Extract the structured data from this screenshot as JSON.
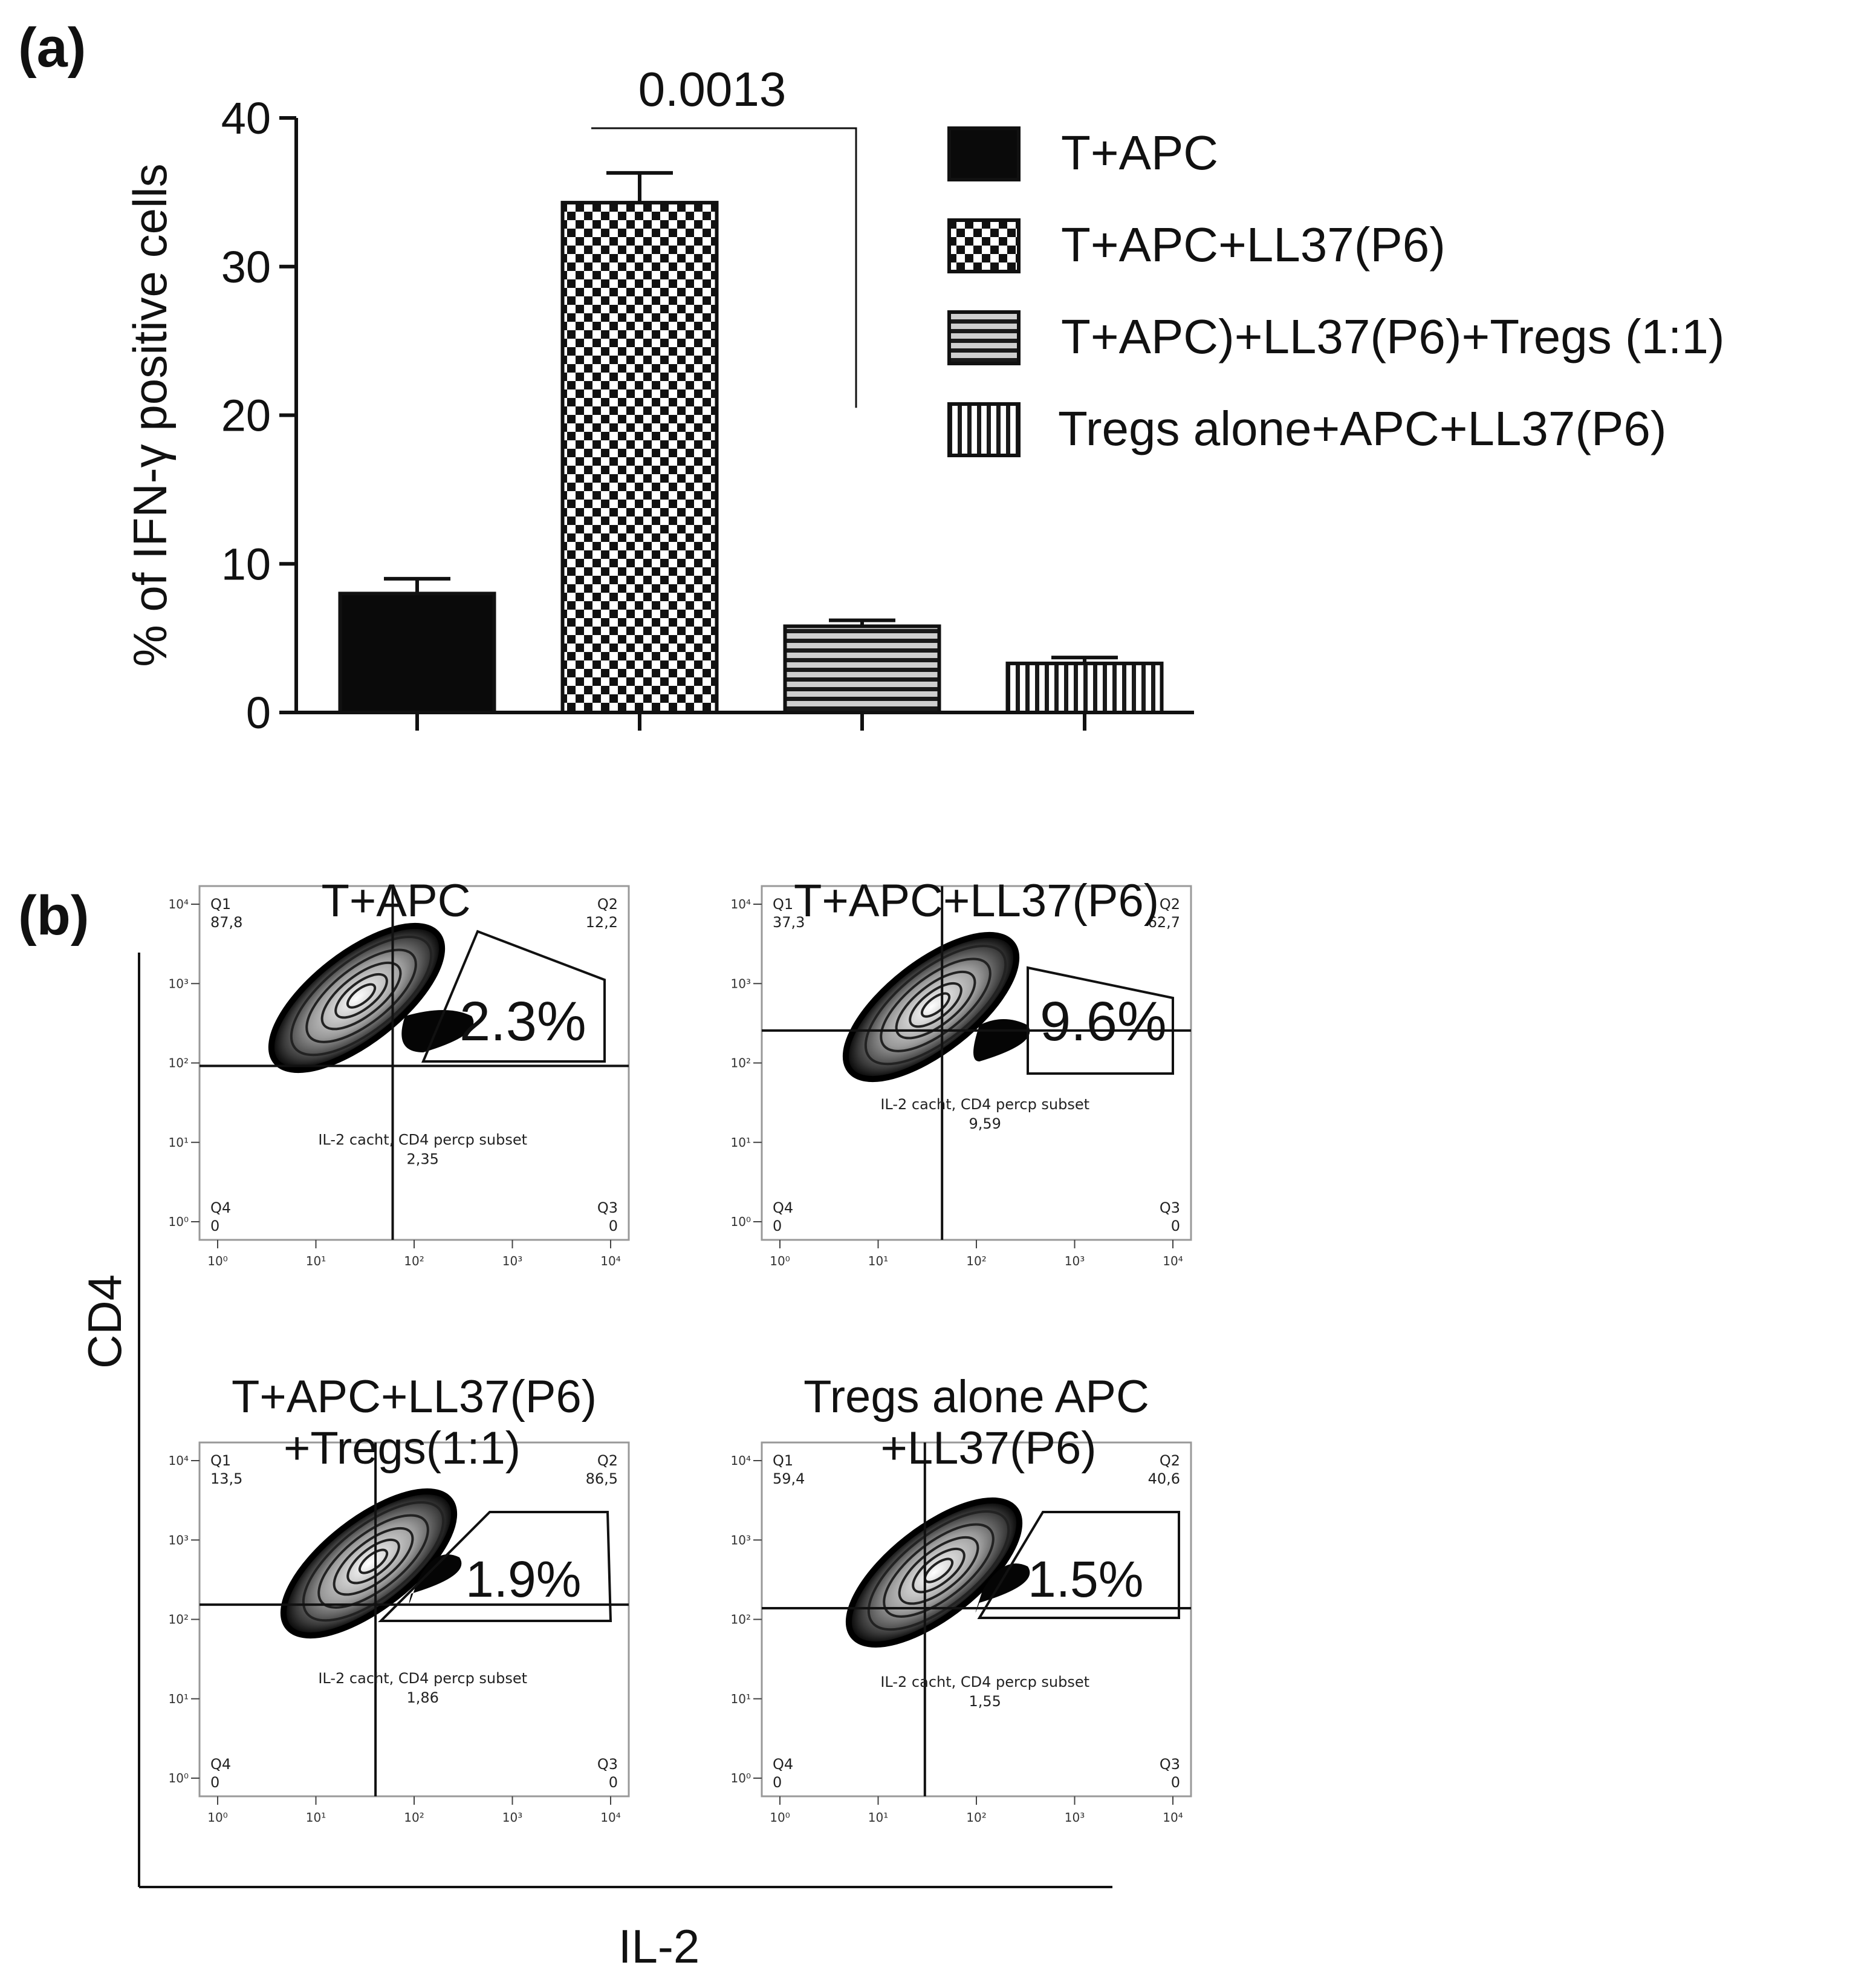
{
  "panel_a": {
    "label": "(a)",
    "chart_data": {
      "type": "bar",
      "categories": [
        "T+APC",
        "T+APC+LL37(P6)",
        "T+APC)+LL37(P6)+Tregs (1:1)",
        "Tregs alone+APC+LL37(P6)"
      ],
      "series": [
        {
          "values": [
            8.0,
            34.3,
            5.8,
            3.3
          ],
          "errors": [
            1.0,
            2.0,
            0.4,
            0.4
          ]
        }
      ],
      "patterns": [
        "solid",
        "checker",
        "horizontal-stripes",
        "vertical-stripes"
      ],
      "ylabel": "% of IFN-γ positive cells",
      "ylim": [
        0,
        40
      ],
      "yticks": [
        "0",
        "10",
        "20",
        "30",
        "40"
      ],
      "legend_position": "right",
      "significance": {
        "label": "0.0013",
        "between": [
          1,
          2
        ]
      }
    }
  },
  "panel_b": {
    "label": "(b)",
    "ylabel": "CD4",
    "xlabel": "IL-2",
    "axis_ticks": [
      "10⁰",
      "10¹",
      "10²",
      "10³",
      "10⁴"
    ],
    "plots": [
      {
        "title1": "T+APC",
        "title2": "",
        "q1": "Q1",
        "q1v": "87,8",
        "q2": "Q2",
        "q2v": "12,2",
        "q3": "Q3",
        "q3v": "0",
        "q4": "Q4",
        "q4v": "0",
        "subset": "IL-2 cacht, CD4 percp subset",
        "subset_v": "2,35",
        "gate_pct": "2.3%"
      },
      {
        "title1": "T+APC+LL37(P6)",
        "title2": "",
        "q1": "Q1",
        "q1v": "37,3",
        "q2": "Q2",
        "q2v": "62,7",
        "q3": "Q3",
        "q3v": "0",
        "q4": "Q4",
        "q4v": "0",
        "subset": "IL-2 cacht, CD4 percp subset",
        "subset_v": "9,59",
        "gate_pct": "9.6%"
      },
      {
        "title1": "T+APC+LL37(P6)",
        "title2": "+Tregs(1:1)",
        "q1": "Q1",
        "q1v": "13,5",
        "q2": "Q2",
        "q2v": "86,5",
        "q3": "Q3",
        "q3v": "0",
        "q4": "Q4",
        "q4v": "0",
        "subset": "IL-2 cacht, CD4 percp subset",
        "subset_v": "1,86",
        "gate_pct": "1.9%"
      },
      {
        "title1": "Tregs alone APC",
        "title2": "+LL37(P6)",
        "q1": "Q1",
        "q1v": "59,4",
        "q2": "Q2",
        "q2v": "40,6",
        "q3": "Q3",
        "q3v": "0",
        "q4": "Q4",
        "q4v": "0",
        "subset": "IL-2 cacht, CD4 percp subset",
        "subset_v": "1,55",
        "gate_pct": "1.5%"
      }
    ]
  }
}
